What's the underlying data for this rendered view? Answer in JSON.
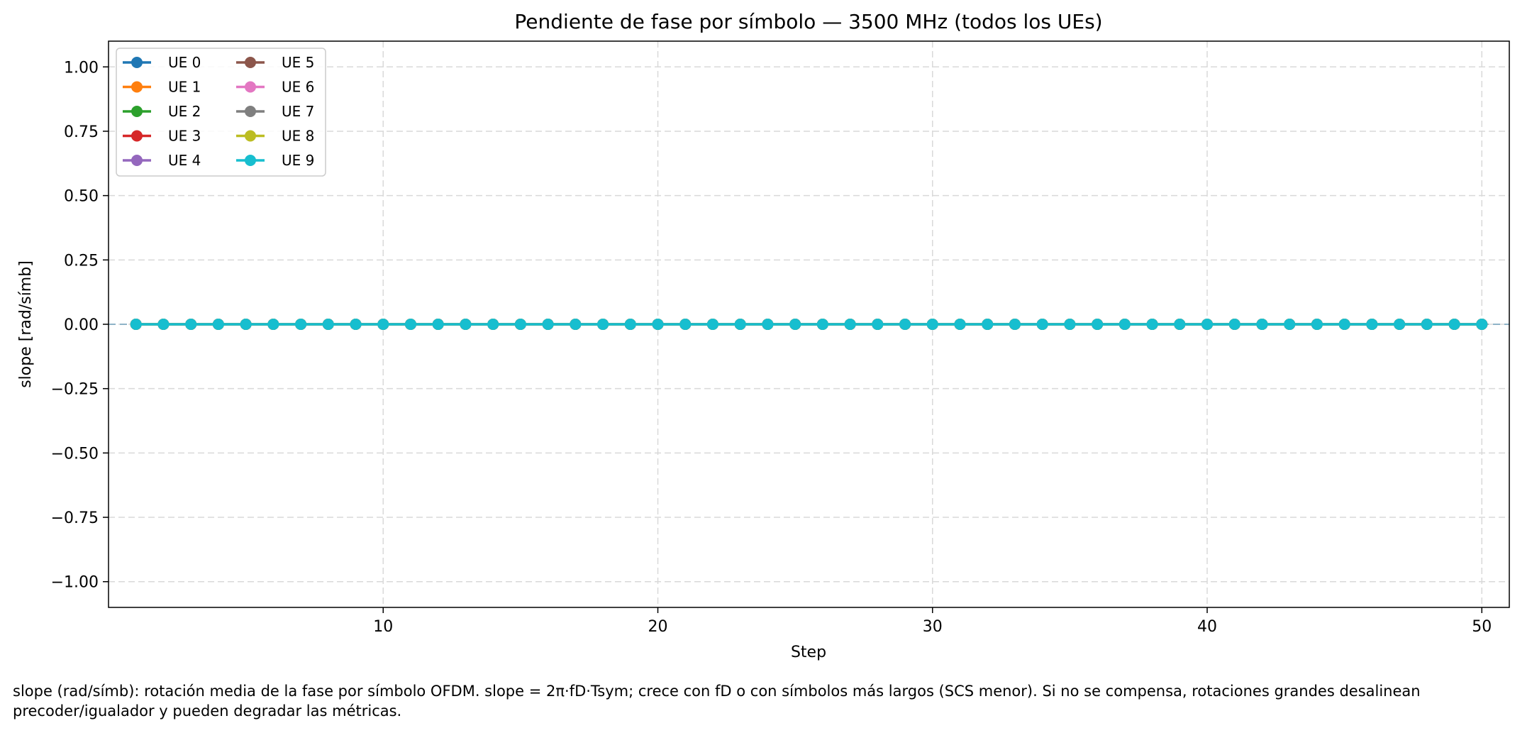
{
  "chart_data": {
    "type": "line",
    "title": "Pendiente de fase por símbolo — 3500 MHz (todos los UEs)",
    "xlabel": "Step",
    "ylabel": "slope [rad/símb]",
    "xlim": [
      0,
      51
    ],
    "ylim": [
      -1.1,
      1.1
    ],
    "x_ticks": [
      "10",
      "20",
      "30",
      "40",
      "50"
    ],
    "y_ticks": [
      "1.00",
      "0.75",
      "0.50",
      "0.25",
      "0.00",
      "−0.25",
      "−0.50",
      "−0.75",
      "−1.00"
    ],
    "grid": true,
    "legend": {
      "placement": "top-left",
      "columns": 2
    },
    "reference_line": {
      "y": 0,
      "style": "dashed"
    },
    "x": [
      1,
      2,
      3,
      4,
      5,
      6,
      7,
      8,
      9,
      10,
      11,
      12,
      13,
      14,
      15,
      16,
      17,
      18,
      19,
      20,
      21,
      22,
      23,
      24,
      25,
      26,
      27,
      28,
      29,
      30,
      31,
      32,
      33,
      34,
      35,
      36,
      37,
      38,
      39,
      40,
      41,
      42,
      43,
      44,
      45,
      46,
      47,
      48,
      49,
      50
    ],
    "series": [
      {
        "name": "UE 0",
        "color": "#1f77b4",
        "value": 0
      },
      {
        "name": "UE 1",
        "color": "#ff7f0e",
        "value": 0
      },
      {
        "name": "UE 2",
        "color": "#2ca02c",
        "value": 0
      },
      {
        "name": "UE 3",
        "color": "#d62728",
        "value": 0
      },
      {
        "name": "UE 4",
        "color": "#9467bd",
        "value": 0
      },
      {
        "name": "UE 5",
        "color": "#8c564b",
        "value": 0
      },
      {
        "name": "UE 6",
        "color": "#e377c2",
        "value": 0
      },
      {
        "name": "UE 7",
        "color": "#7f7f7f",
        "value": 0
      },
      {
        "name": "UE 8",
        "color": "#bcbd22",
        "value": 0
      },
      {
        "name": "UE 9",
        "color": "#17becf",
        "value": 0
      }
    ]
  },
  "caption": "slope (rad/símb): rotación media de la fase por símbolo OFDM. slope = 2π·fD·Tsym; crece con fD o con símbolos más largos (SCS menor). Si no se compensa, rotaciones grandes desalinean precoder/igualador y pueden degradar las métricas."
}
